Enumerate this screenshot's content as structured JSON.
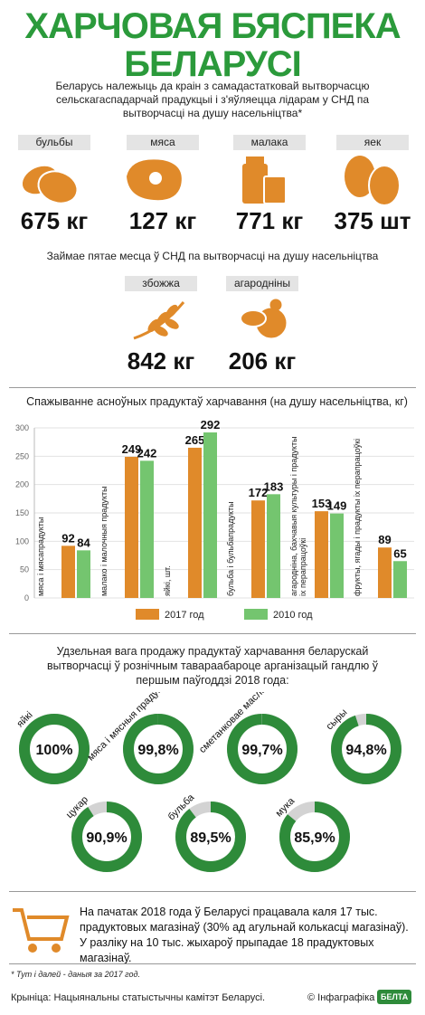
{
  "header": {
    "title": "ХАРЧОВАЯ БЯСПЕКА БЕЛАРУСІ",
    "intro": "Беларусь належыць да краін з самадастатковай вытворчасцю сельскагаспадарчай прадукцыі і з'яўляецца лідарам у СНД па вытворчасці на душу насельніцтва*"
  },
  "products": [
    {
      "name": "бульбы",
      "value": "675 кг"
    },
    {
      "name": "мяса",
      "value": "127 кг"
    },
    {
      "name": "малака",
      "value": "771 кг"
    },
    {
      "name": "яек",
      "value": "375 шт"
    }
  ],
  "fifth_place": {
    "title": "Займае пятае месца ў СНД па вытворчасці на душу насельніцтва",
    "items": [
      {
        "name": "збожжа",
        "value": "842 кг"
      },
      {
        "name": "агародніны",
        "value": "206 кг"
      }
    ]
  },
  "chart_data": [
    {
      "type": "bar",
      "title": "Спажыванне асноўных прадуктаў харчавання (на душу насельніцтва, кг)",
      "categories": [
        "мяса і мясапрадукты",
        "малако і малочныя прадукты",
        "яйкі, шт.",
        "бульба і бульбапрадукты",
        "агародніна, бахчавыя культуры і прадукты іх перапрацоўкі",
        "фрукты, ягады і прадукты іх перапрацоўкі"
      ],
      "series": [
        {
          "name": "2017 год",
          "color": "#e08a2a",
          "values": [
            92,
            249,
            265,
            172,
            153,
            89
          ]
        },
        {
          "name": "2010 год",
          "color": "#74c56f",
          "values": [
            84,
            242,
            292,
            183,
            149,
            65
          ]
        }
      ],
      "ylim": [
        0,
        300
      ],
      "yticks": [
        0,
        50,
        100,
        150,
        200,
        250,
        300
      ],
      "grid": true
    },
    {
      "type": "donut",
      "title": "Удзельная вага продажу прадуктаў харчавання беларускай вытворчасці ў рознічным тавараабароце арганізацый гандлю ў першым паўгоддзі 2018 года:",
      "categories": [
        "яйкі",
        "мяса і мясныя прадукты",
        "сметанковае масла",
        "сыры",
        "цукар",
        "бульба",
        "мука"
      ],
      "values": [
        100,
        99.8,
        99.7,
        94.8,
        90.9,
        89.5,
        85.9
      ],
      "value_labels": [
        "100%",
        "99,8%",
        "99,7%",
        "94,8%",
        "90,9%",
        "89,5%",
        "85,9%"
      ],
      "color": "#2e8b3a",
      "track_color": "#d3d3d3"
    }
  ],
  "shops": {
    "text": "На пачатак 2018 года ў Беларусі працавала каля 17 тыс. прадуктовых магазінаў (30% ад агульнай колькасці магазінаў). У разліку на 10 тыс. жыхароў прыпадае 18 прадуктовых магазінаў."
  },
  "footnote": "* Тут і далей - даныя за 2017 год.",
  "source": "Крыніца: Нацыянальны статыстычны камітэт Беларусі.",
  "credit": "© Інфаграфіка",
  "logo": "БЕЛТА"
}
